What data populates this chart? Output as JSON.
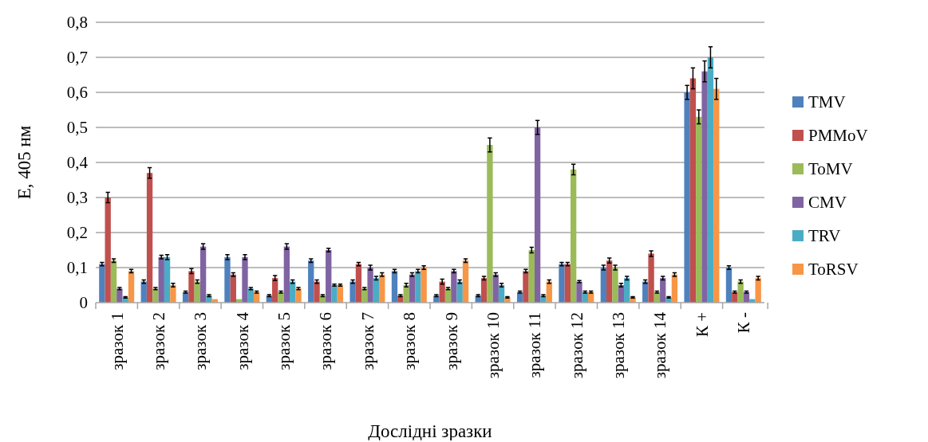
{
  "chart_data": {
    "type": "bar",
    "xlabel": "Дослідні зразки",
    "ylabel": "Е, 405 нм",
    "categories": [
      "зразок 1",
      "зразок 2",
      "зразок 3",
      "зразок 4",
      "зразок 5",
      "зразок 6",
      "зразок 7",
      "зразок 8",
      "зразок 9",
      "зразок 10",
      "зразок 11",
      "зразок 12",
      "зразок 13",
      "зразок 14",
      "К +",
      "К -"
    ],
    "series": [
      {
        "name": "TMV",
        "color": "#4f81bd",
        "values": [
          0.11,
          0.06,
          0.03,
          0.13,
          0.02,
          0.12,
          0.06,
          0.09,
          0.02,
          0.02,
          0.03,
          0.11,
          0.1,
          0.06,
          0.6,
          0.1
        ],
        "errors": [
          0.005,
          0.005,
          0.003,
          0.007,
          0.003,
          0.005,
          0.005,
          0.005,
          0.003,
          0.003,
          0.003,
          0.005,
          0.007,
          0.005,
          0.02,
          0.005
        ]
      },
      {
        "name": "PMMoV",
        "color": "#c0504d",
        "values": [
          0.3,
          0.37,
          0.09,
          0.08,
          0.07,
          0.06,
          0.11,
          0.02,
          0.06,
          0.07,
          0.09,
          0.11,
          0.12,
          0.14,
          0.64,
          0.03
        ],
        "errors": [
          0.015,
          0.015,
          0.007,
          0.005,
          0.007,
          0.005,
          0.005,
          0.003,
          0.007,
          0.005,
          0.005,
          0.005,
          0.007,
          0.008,
          0.03,
          0.003
        ]
      },
      {
        "name": "ToMV",
        "color": "#9bbb59",
        "values": [
          0.12,
          0.04,
          0.06,
          0.01,
          0.03,
          0.02,
          0.04,
          0.05,
          0.04,
          0.45,
          0.15,
          0.38,
          0.1,
          0.03,
          0.53,
          0.06
        ],
        "errors": [
          0.005,
          0.003,
          0.005,
          null,
          0.003,
          0.003,
          0.003,
          0.005,
          0.003,
          0.02,
          0.008,
          0.015,
          0.007,
          0.003,
          0.02,
          0.005
        ]
      },
      {
        "name": "CMV",
        "color": "#8064a2",
        "values": [
          0.04,
          0.13,
          0.16,
          0.13,
          0.16,
          0.15,
          0.1,
          0.08,
          0.09,
          0.08,
          0.5,
          0.06,
          0.05,
          0.07,
          0.66,
          0.03
        ],
        "errors": [
          0.003,
          0.005,
          0.008,
          0.007,
          0.008,
          0.005,
          0.007,
          0.005,
          0.005,
          0.005,
          0.02,
          0.003,
          0.005,
          0.005,
          0.03,
          0.003
        ]
      },
      {
        "name": "TRV",
        "color": "#4bacc6",
        "values": [
          0.015,
          0.13,
          0.02,
          0.04,
          0.06,
          0.05,
          0.07,
          0.09,
          0.06,
          0.05,
          0.02,
          0.03,
          0.07,
          0.015,
          0.7,
          0.01
        ],
        "errors": [
          0.002,
          0.007,
          0.003,
          0.003,
          0.005,
          0.003,
          0.005,
          0.005,
          0.005,
          0.005,
          0.003,
          0.003,
          0.005,
          0.002,
          0.03,
          null
        ]
      },
      {
        "name": "ToRSV",
        "color": "#f79646",
        "values": [
          0.09,
          0.05,
          0.01,
          0.03,
          0.04,
          0.05,
          0.08,
          0.1,
          0.12,
          0.015,
          0.06,
          0.03,
          0.015,
          0.08,
          0.61,
          0.07
        ],
        "errors": [
          0.005,
          0.005,
          null,
          0.003,
          0.003,
          0.003,
          0.005,
          0.005,
          0.005,
          0.002,
          0.005,
          0.003,
          0.002,
          0.005,
          0.03,
          0.005
        ]
      }
    ],
    "ylim": [
      0,
      0.8
    ],
    "yticks": [
      {
        "value": 0,
        "label": "0"
      },
      {
        "value": 0.1,
        "label": "0,1"
      },
      {
        "value": 0.2,
        "label": "0,2"
      },
      {
        "value": 0.3,
        "label": "0,3"
      },
      {
        "value": 0.4,
        "label": "0,4"
      },
      {
        "value": 0.5,
        "label": "0,5"
      },
      {
        "value": 0.6,
        "label": "0,6"
      },
      {
        "value": 0.7,
        "label": "0,7"
      },
      {
        "value": 0.8,
        "label": "0,8"
      }
    ],
    "grid": "y",
    "legend": "right"
  }
}
